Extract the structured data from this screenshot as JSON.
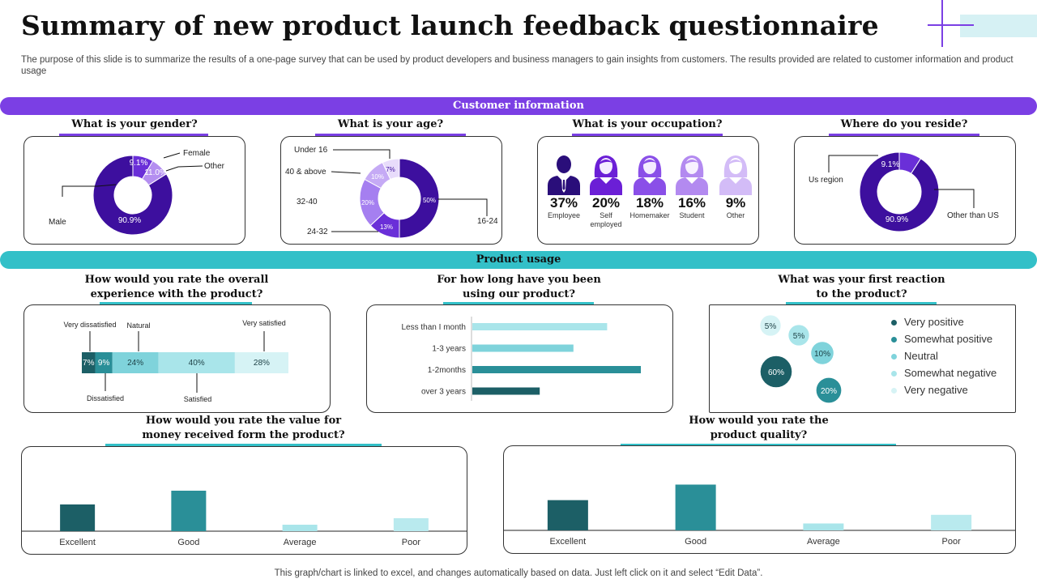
{
  "title": "Summary of new product launch feedback questionnaire",
  "description": "The purpose of this slide is to summarize the results of a one-page survey that can be used by product developers and business managers to gain insights from customers. The results provided are related to customer information and product usage",
  "footer": "This graph/chart is linked to excel,  and changes automatically based on data. Just left click on it and select “Edit Data”.",
  "colors": {
    "purple": "#7b3fe4",
    "dark_purple": "#3d0f9e",
    "teal": "#33c0c8"
  },
  "sections": {
    "customer": {
      "label": "Customer information"
    },
    "usage": {
      "label": "Product usage"
    }
  },
  "questions": {
    "gender": "What is your gender?",
    "age": "What is your age?",
    "occupation": "What is your occupation?",
    "reside": "Where do you reside?",
    "experience_line1": "How would you rate the overall",
    "experience_line2": "experience with the product?",
    "duration_line1": "For how long have you been",
    "duration_line2": "using our product?",
    "reaction_line1": "What was your first reaction",
    "reaction_line2": "to the product?",
    "value_line1": "How would you rate the value for",
    "value_line2": "money received form the product?",
    "quality_line1": "How would you rate the",
    "quality_line2": "product quality?"
  },
  "occupation": [
    {
      "pct": "37%",
      "label": "Employee",
      "icon": "male-user-icon"
    },
    {
      "pct": "20%",
      "label": "Self employed",
      "icon": "female-user-icon"
    },
    {
      "pct": "18%",
      "label": "Homemaker",
      "icon": "female-user-icon"
    },
    {
      "pct": "16%",
      "label": "Student",
      "icon": "female-user-icon"
    },
    {
      "pct": "9%",
      "label": "Other",
      "icon": "female-user-icon"
    }
  ],
  "chart_data": [
    {
      "type": "pie",
      "title": "What is your gender?",
      "categories": [
        "Male",
        "Female",
        "Other"
      ],
      "values": [
        90.9,
        9.1,
        11.0
      ],
      "value_labels": [
        "90.9%",
        "9.1%",
        "11.0%"
      ]
    },
    {
      "type": "pie",
      "title": "What is your age?",
      "categories": [
        "16-24",
        "24-32",
        "32-40",
        "40 & above",
        "Under 16"
      ],
      "values": [
        50,
        13,
        20,
        10,
        7
      ],
      "value_labels": [
        "50%",
        "13%",
        "20%",
        "10%",
        "7%"
      ]
    },
    {
      "type": "pie",
      "title": "Where do you reside?",
      "categories": [
        "Other than US",
        "Us region"
      ],
      "values": [
        90.9,
        9.1
      ],
      "value_labels": [
        "90.9%",
        "9.1%"
      ]
    },
    {
      "type": "bar",
      "title": "How would you rate the overall experience with the product?",
      "orientation": "stacked-horizontal",
      "categories": [
        "Very dissatisfied",
        "Dissatisfied",
        "Natural",
        "Satisfied",
        "Very satisfied"
      ],
      "values": [
        7,
        9,
        24,
        40,
        28
      ],
      "value_labels": [
        "7%",
        "9%",
        "24%",
        "40%",
        "28%"
      ]
    },
    {
      "type": "bar",
      "title": "For how long have you been using our product?",
      "orientation": "horizontal",
      "categories": [
        "Less than I month",
        "1-3 years",
        "1-2months",
        "over 3 years"
      ],
      "values": [
        8,
        6,
        10,
        4
      ]
    },
    {
      "type": "scatter",
      "title": "What was your first reaction to the product?",
      "categories": [
        "Very positive",
        "Somewhat positive",
        "Neutral",
        "Somewhat negative",
        "Very negative"
      ],
      "values": [
        60,
        20,
        10,
        5,
        5
      ],
      "value_labels": [
        "60%",
        "20%",
        "10%",
        "5%",
        "5%"
      ],
      "legend": "right"
    },
    {
      "type": "bar",
      "title": "How would you rate the value for money received form the product?",
      "categories": [
        "Excellent",
        "Good",
        "Average",
        "Poor"
      ],
      "values": [
        33,
        50,
        8,
        16
      ]
    },
    {
      "type": "bar",
      "title": "How would you rate the product quality?",
      "categories": [
        "Excellent",
        "Good",
        "Average",
        "Poor"
      ],
      "values": [
        35,
        53,
        8,
        18
      ]
    }
  ]
}
